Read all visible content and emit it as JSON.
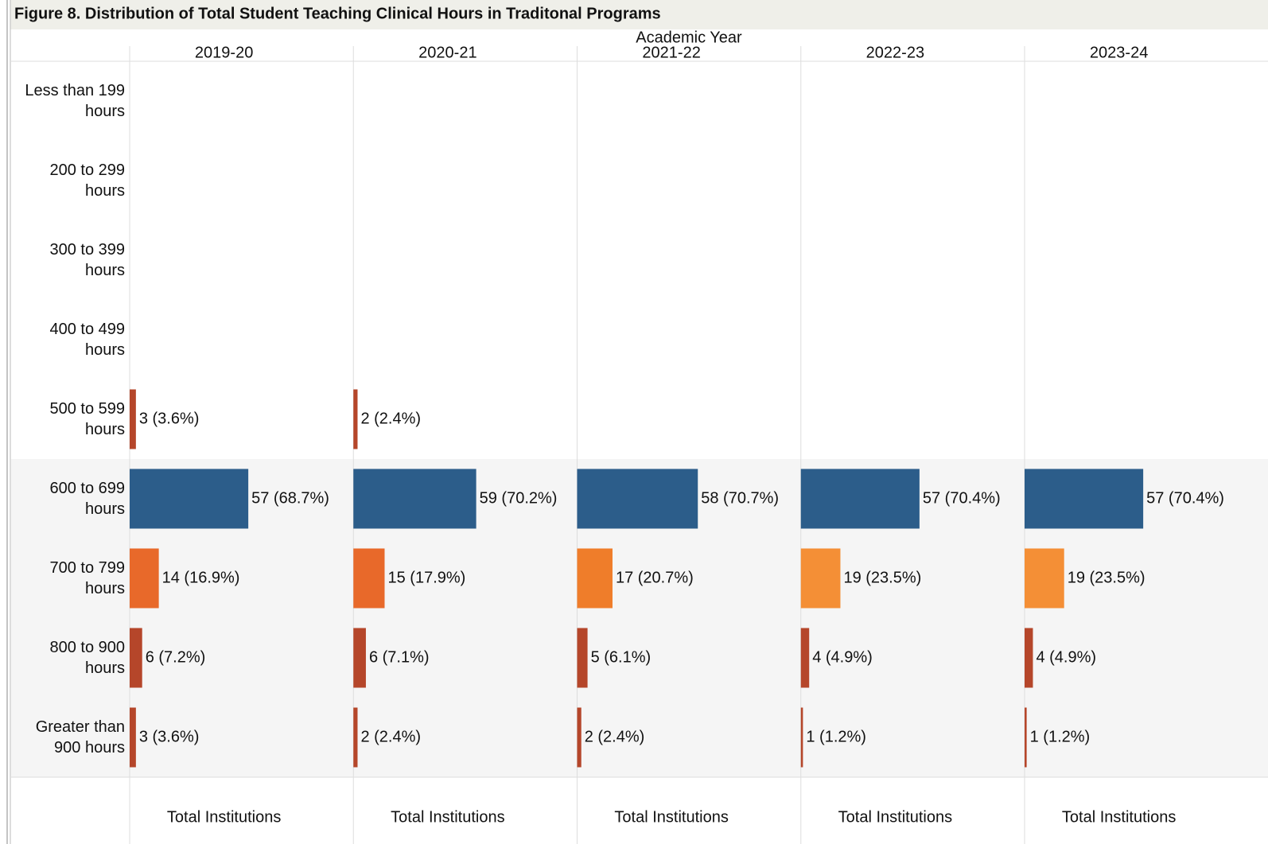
{
  "chart_data": {
    "type": "bar",
    "title": "Figure 8. Distribution of Total Student Teaching Clinical Hours in Traditonal Programs",
    "column_header": "Academic Year",
    "xlabel": "Total Institutions",
    "xlim": [
      0,
      107.5
    ],
    "categories": [
      "Less than 199 hours",
      "200 to 299 hours",
      "300 to 399 hours",
      "400 to 499 hours",
      "500 to 599 hours",
      "600 to 699 hours",
      "700 to 799 hours",
      "800 to 900 hours",
      "Greater than 900 hours"
    ],
    "series": [
      {
        "name": "2019-20",
        "values": [
          null,
          null,
          null,
          null,
          3,
          57,
          14,
          6,
          3
        ],
        "value_labels": [
          null,
          null,
          null,
          null,
          "3 (3.6%)",
          "57 (68.7%)",
          "14 (16.9%)",
          "6 (7.2%)",
          "3 (3.6%)"
        ],
        "colors": [
          null,
          null,
          null,
          null,
          "#b5462a",
          "#2c5d8a",
          "#e8692a",
          "#b5462a",
          "#b5462a"
        ]
      },
      {
        "name": "2020-21",
        "values": [
          null,
          null,
          null,
          null,
          2,
          59,
          15,
          6,
          2
        ],
        "value_labels": [
          null,
          null,
          null,
          null,
          "2 (2.4%)",
          "59 (70.2%)",
          "15 (17.9%)",
          "6 (7.1%)",
          "2 (2.4%)"
        ],
        "colors": [
          null,
          null,
          null,
          null,
          "#b5462a",
          "#2c5d8a",
          "#e8692a",
          "#b5462a",
          "#b5462a"
        ]
      },
      {
        "name": "2021-22",
        "values": [
          null,
          null,
          null,
          null,
          null,
          58,
          17,
          5,
          2
        ],
        "value_labels": [
          null,
          null,
          null,
          null,
          null,
          "58 (70.7%)",
          "17 (20.7%)",
          "5 (6.1%)",
          "2 (2.4%)"
        ],
        "colors": [
          null,
          null,
          null,
          null,
          null,
          "#2c5d8a",
          "#ef7d2a",
          "#b5462a",
          "#b5462a"
        ]
      },
      {
        "name": "2022-23",
        "values": [
          null,
          null,
          null,
          null,
          null,
          57,
          19,
          4,
          1
        ],
        "value_labels": [
          null,
          null,
          null,
          null,
          null,
          "57 (70.4%)",
          "19 (23.5%)",
          "4 (4.9%)",
          "1 (1.2%)"
        ],
        "colors": [
          null,
          null,
          null,
          null,
          null,
          "#2c5d8a",
          "#f48f36",
          "#b5462a",
          "#b5462a"
        ]
      },
      {
        "name": "2023-24",
        "values": [
          null,
          null,
          null,
          null,
          null,
          57,
          19,
          4,
          1
        ],
        "value_labels": [
          null,
          null,
          null,
          null,
          null,
          "57 (70.4%)",
          "19 (23.5%)",
          "4 (4.9%)",
          "1 (1.2%)"
        ],
        "colors": [
          null,
          null,
          null,
          null,
          null,
          "#2c5d8a",
          "#f48f36",
          "#b5462a",
          "#b5462a"
        ]
      }
    ]
  }
}
